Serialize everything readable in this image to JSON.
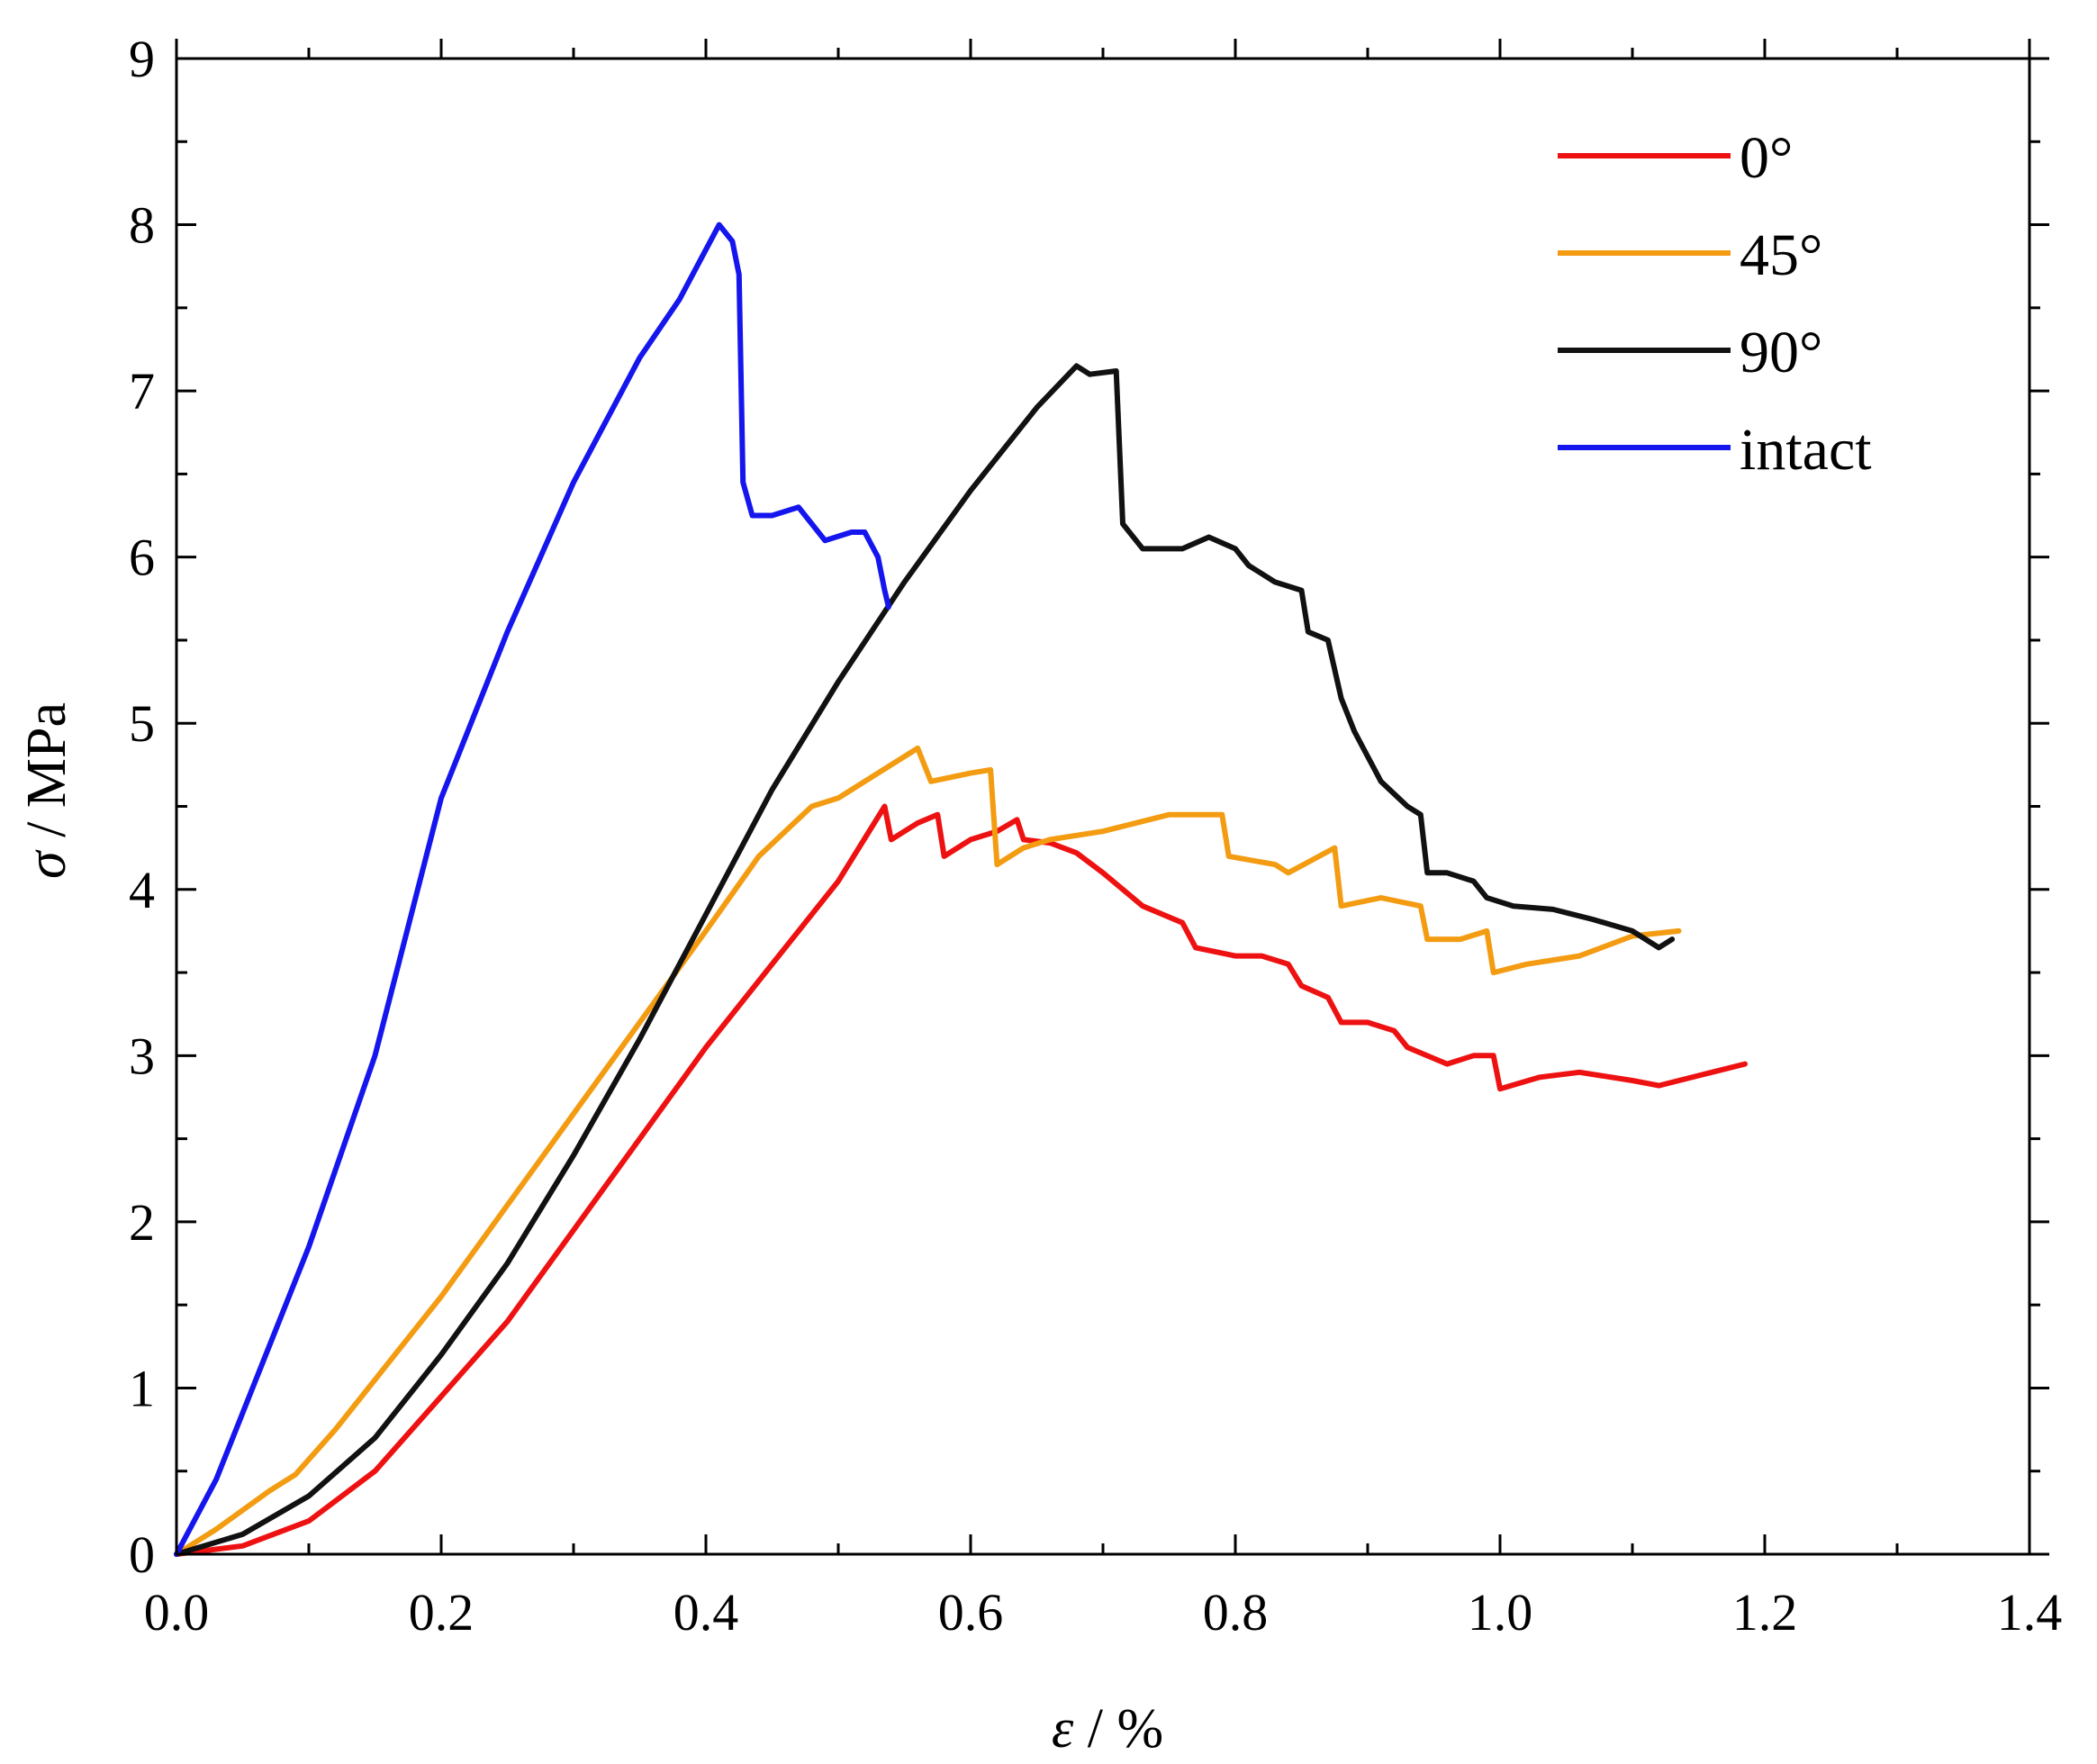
{
  "chart_data": {
    "type": "line",
    "title": "",
    "xlabel_symbol": "ε",
    "xlabel_unit": " / %",
    "ylabel_symbol": "σ",
    "ylabel_unit": " / MPa",
    "xlim": [
      0,
      1.4
    ],
    "ylim": [
      0,
      9
    ],
    "xticks": [
      "0.0",
      "0.2",
      "0.4",
      "0.6",
      "0.8",
      "1.0",
      "1.2",
      "1.4"
    ],
    "yticks": [
      "0",
      "1",
      "2",
      "3",
      "4",
      "5",
      "6",
      "7",
      "8",
      "9"
    ],
    "grid": false,
    "legend_position": "top-right",
    "series": [
      {
        "name": " 0°",
        "color": "#ee1111",
        "points": [
          [
            0,
            0
          ],
          [
            0.05,
            0.05
          ],
          [
            0.1,
            0.2
          ],
          [
            0.15,
            0.5
          ],
          [
            0.2,
            0.95
          ],
          [
            0.25,
            1.4
          ],
          [
            0.3,
            1.95
          ],
          [
            0.35,
            2.5
          ],
          [
            0.4,
            3.05
          ],
          [
            0.45,
            3.55
          ],
          [
            0.5,
            4.05
          ],
          [
            0.535,
            4.5
          ],
          [
            0.54,
            4.3
          ],
          [
            0.56,
            4.4
          ],
          [
            0.575,
            4.45
          ],
          [
            0.58,
            4.2
          ],
          [
            0.6,
            4.3
          ],
          [
            0.62,
            4.35
          ],
          [
            0.635,
            4.42
          ],
          [
            0.64,
            4.3
          ],
          [
            0.66,
            4.28
          ],
          [
            0.68,
            4.22
          ],
          [
            0.7,
            4.1
          ],
          [
            0.73,
            3.9
          ],
          [
            0.76,
            3.8
          ],
          [
            0.77,
            3.65
          ],
          [
            0.8,
            3.6
          ],
          [
            0.82,
            3.6
          ],
          [
            0.84,
            3.55
          ],
          [
            0.85,
            3.42
          ],
          [
            0.87,
            3.35
          ],
          [
            0.88,
            3.2
          ],
          [
            0.9,
            3.2
          ],
          [
            0.92,
            3.15
          ],
          [
            0.93,
            3.05
          ],
          [
            0.96,
            2.95
          ],
          [
            0.98,
            3.0
          ],
          [
            0.995,
            3.0
          ],
          [
            1.0,
            2.8
          ],
          [
            1.03,
            2.87
          ],
          [
            1.06,
            2.9
          ],
          [
            1.1,
            2.85
          ],
          [
            1.12,
            2.82
          ],
          [
            1.15,
            2.88
          ],
          [
            1.185,
            2.95
          ]
        ]
      },
      {
        "name": "45°",
        "color": "#f39c12",
        "points": [
          [
            0,
            0
          ],
          [
            0.03,
            0.15
          ],
          [
            0.07,
            0.38
          ],
          [
            0.09,
            0.48
          ],
          [
            0.12,
            0.75
          ],
          [
            0.15,
            1.05
          ],
          [
            0.2,
            1.55
          ],
          [
            0.25,
            2.1
          ],
          [
            0.3,
            2.65
          ],
          [
            0.35,
            3.2
          ],
          [
            0.4,
            3.75
          ],
          [
            0.44,
            4.2
          ],
          [
            0.48,
            4.5
          ],
          [
            0.5,
            4.55
          ],
          [
            0.53,
            4.7
          ],
          [
            0.56,
            4.85
          ],
          [
            0.57,
            4.65
          ],
          [
            0.6,
            4.7
          ],
          [
            0.615,
            4.72
          ],
          [
            0.62,
            4.15
          ],
          [
            0.64,
            4.25
          ],
          [
            0.66,
            4.3
          ],
          [
            0.7,
            4.35
          ],
          [
            0.75,
            4.45
          ],
          [
            0.79,
            4.45
          ],
          [
            0.795,
            4.2
          ],
          [
            0.83,
            4.15
          ],
          [
            0.84,
            4.1
          ],
          [
            0.875,
            4.25
          ],
          [
            0.88,
            3.9
          ],
          [
            0.91,
            3.95
          ],
          [
            0.94,
            3.9
          ],
          [
            0.945,
            3.7
          ],
          [
            0.97,
            3.7
          ],
          [
            0.99,
            3.75
          ],
          [
            0.995,
            3.5
          ],
          [
            1.02,
            3.55
          ],
          [
            1.06,
            3.6
          ],
          [
            1.1,
            3.72
          ],
          [
            1.135,
            3.75
          ]
        ]
      },
      {
        "name": "90°",
        "color": "#111111",
        "points": [
          [
            0,
            0
          ],
          [
            0.05,
            0.12
          ],
          [
            0.1,
            0.35
          ],
          [
            0.15,
            0.7
          ],
          [
            0.2,
            1.2
          ],
          [
            0.25,
            1.75
          ],
          [
            0.3,
            2.4
          ],
          [
            0.35,
            3.1
          ],
          [
            0.4,
            3.85
          ],
          [
            0.45,
            4.6
          ],
          [
            0.5,
            5.25
          ],
          [
            0.55,
            5.85
          ],
          [
            0.6,
            6.4
          ],
          [
            0.65,
            6.9
          ],
          [
            0.68,
            7.15
          ],
          [
            0.69,
            7.1
          ],
          [
            0.71,
            7.12
          ],
          [
            0.715,
            6.2
          ],
          [
            0.73,
            6.05
          ],
          [
            0.76,
            6.05
          ],
          [
            0.78,
            6.12
          ],
          [
            0.8,
            6.05
          ],
          [
            0.81,
            5.95
          ],
          [
            0.83,
            5.85
          ],
          [
            0.85,
            5.8
          ],
          [
            0.855,
            5.55
          ],
          [
            0.87,
            5.5
          ],
          [
            0.88,
            5.15
          ],
          [
            0.89,
            4.95
          ],
          [
            0.9,
            4.8
          ],
          [
            0.91,
            4.65
          ],
          [
            0.93,
            4.5
          ],
          [
            0.94,
            4.45
          ],
          [
            0.945,
            4.1
          ],
          [
            0.96,
            4.1
          ],
          [
            0.98,
            4.05
          ],
          [
            0.99,
            3.95
          ],
          [
            1.01,
            3.9
          ],
          [
            1.04,
            3.88
          ],
          [
            1.07,
            3.82
          ],
          [
            1.1,
            3.75
          ],
          [
            1.12,
            3.65
          ],
          [
            1.13,
            3.7
          ]
        ]
      },
      {
        "name": "intact",
        "color": "#1515ee",
        "points": [
          [
            0,
            0
          ],
          [
            0.03,
            0.45
          ],
          [
            0.06,
            1.05
          ],
          [
            0.1,
            1.85
          ],
          [
            0.15,
            3.0
          ],
          [
            0.2,
            4.55
          ],
          [
            0.25,
            5.55
          ],
          [
            0.3,
            6.45
          ],
          [
            0.35,
            7.2
          ],
          [
            0.38,
            7.55
          ],
          [
            0.4,
            7.85
          ],
          [
            0.41,
            8.0
          ],
          [
            0.42,
            7.9
          ],
          [
            0.425,
            7.7
          ],
          [
            0.428,
            6.45
          ],
          [
            0.435,
            6.25
          ],
          [
            0.45,
            6.25
          ],
          [
            0.47,
            6.3
          ],
          [
            0.49,
            6.1
          ],
          [
            0.51,
            6.15
          ],
          [
            0.52,
            6.15
          ],
          [
            0.53,
            6.0
          ],
          [
            0.535,
            5.8
          ],
          [
            0.538,
            5.7
          ]
        ]
      }
    ]
  }
}
